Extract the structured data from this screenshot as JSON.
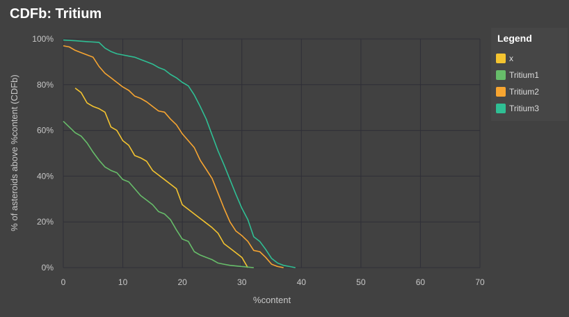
{
  "chart_data": {
    "type": "line",
    "title": "CDFb: Tritium",
    "xlabel": "%content",
    "ylabel": "% of asteroids above %content (CDFb)",
    "xlim": [
      0,
      70
    ],
    "ylim": [
      0,
      100
    ],
    "x_ticks": [
      0,
      10,
      20,
      30,
      40,
      50,
      60,
      70
    ],
    "y_ticks": [
      "0%",
      "20%",
      "40%",
      "60%",
      "80%",
      "100%"
    ],
    "grid": true,
    "legend": {
      "title": "Legend",
      "placement": "right"
    },
    "series": [
      {
        "name": "x",
        "color": "#f4c430",
        "points": [
          [
            2,
            78.5
          ],
          [
            3,
            76.5
          ],
          [
            4,
            72
          ],
          [
            5,
            70.5
          ],
          [
            6,
            69.5
          ],
          [
            7,
            68
          ],
          [
            8,
            61.5
          ],
          [
            9,
            60
          ],
          [
            10,
            55.5
          ],
          [
            11,
            53.5
          ],
          [
            12,
            49
          ],
          [
            13,
            48
          ],
          [
            14,
            46.5
          ],
          [
            15,
            42.5
          ],
          [
            16,
            40.5
          ],
          [
            17,
            38.5
          ],
          [
            18,
            36.5
          ],
          [
            19,
            34.5
          ],
          [
            20,
            27.5
          ],
          [
            21,
            25.5
          ],
          [
            22,
            23.5
          ],
          [
            23,
            21.5
          ],
          [
            24,
            19.5
          ],
          [
            25,
            17.5
          ],
          [
            26,
            15
          ],
          [
            27,
            10.5
          ],
          [
            28,
            8.5
          ],
          [
            29,
            6.5
          ],
          [
            30,
            4.5
          ],
          [
            31,
            0
          ]
        ]
      },
      {
        "name": "Tritium1",
        "color": "#67bd6a",
        "points": [
          [
            0,
            64
          ],
          [
            1,
            61.5
          ],
          [
            2,
            59
          ],
          [
            3,
            57.5
          ],
          [
            4,
            54.5
          ],
          [
            5,
            50.5
          ],
          [
            6,
            47
          ],
          [
            7,
            44
          ],
          [
            8,
            42.5
          ],
          [
            9,
            41.5
          ],
          [
            10,
            38.5
          ],
          [
            11,
            37.5
          ],
          [
            12,
            34.5
          ],
          [
            13,
            31.5
          ],
          [
            14,
            29.5
          ],
          [
            15,
            27.5
          ],
          [
            16,
            24.5
          ],
          [
            17,
            23.5
          ],
          [
            18,
            21
          ],
          [
            19,
            16.5
          ],
          [
            20,
            12.5
          ],
          [
            21,
            11.5
          ],
          [
            22,
            7
          ],
          [
            23,
            5.5
          ],
          [
            24,
            4.5
          ],
          [
            25,
            3.5
          ],
          [
            26,
            2
          ],
          [
            27,
            1.5
          ],
          [
            28,
            1
          ],
          [
            30,
            0.5
          ],
          [
            32,
            0
          ]
        ]
      },
      {
        "name": "Tritium2",
        "color": "#f7a531",
        "points": [
          [
            0,
            97
          ],
          [
            1,
            96.5
          ],
          [
            2,
            95
          ],
          [
            3,
            94
          ],
          [
            4,
            93
          ],
          [
            5,
            92
          ],
          [
            6,
            88
          ],
          [
            7,
            85
          ],
          [
            8,
            83
          ],
          [
            9,
            81
          ],
          [
            10,
            79
          ],
          [
            11,
            77.5
          ],
          [
            12,
            75
          ],
          [
            13,
            74
          ],
          [
            14,
            72.5
          ],
          [
            15,
            70.5
          ],
          [
            16,
            68.5
          ],
          [
            17,
            68
          ],
          [
            18,
            65
          ],
          [
            19,
            62.5
          ],
          [
            20,
            58.5
          ],
          [
            21,
            55.5
          ],
          [
            22,
            52.5
          ],
          [
            23,
            47
          ],
          [
            24,
            43
          ],
          [
            25,
            39
          ],
          [
            26,
            32.5
          ],
          [
            27,
            26
          ],
          [
            28,
            20
          ],
          [
            29,
            16
          ],
          [
            30,
            14
          ],
          [
            31,
            11.5
          ],
          [
            32,
            7.5
          ],
          [
            33,
            7
          ],
          [
            34,
            4.5
          ],
          [
            35,
            1.5
          ],
          [
            36,
            0.5
          ],
          [
            37,
            0
          ]
        ]
      },
      {
        "name": "Tritium3",
        "color": "#2fbf94",
        "points": [
          [
            0,
            99.5
          ],
          [
            2,
            99.2
          ],
          [
            4,
            98.8
          ],
          [
            6,
            98.5
          ],
          [
            7,
            96
          ],
          [
            8,
            94.5
          ],
          [
            9,
            93.5
          ],
          [
            10,
            93
          ],
          [
            11,
            92.5
          ],
          [
            12,
            92
          ],
          [
            13,
            91
          ],
          [
            14,
            90
          ],
          [
            15,
            89
          ],
          [
            16,
            87.5
          ],
          [
            17,
            86.5
          ],
          [
            18,
            84.5
          ],
          [
            19,
            83
          ],
          [
            20,
            81
          ],
          [
            21,
            79.5
          ],
          [
            22,
            75.5
          ],
          [
            23,
            70.5
          ],
          [
            24,
            65
          ],
          [
            25,
            58
          ],
          [
            26,
            51
          ],
          [
            27,
            45
          ],
          [
            28,
            38.5
          ],
          [
            29,
            32
          ],
          [
            30,
            26
          ],
          [
            31,
            21
          ],
          [
            32,
            13.5
          ],
          [
            33,
            11.5
          ],
          [
            34,
            8
          ],
          [
            35,
            4
          ],
          [
            36,
            2
          ],
          [
            37,
            1
          ],
          [
            38,
            0.5
          ],
          [
            39,
            0
          ]
        ]
      }
    ]
  }
}
